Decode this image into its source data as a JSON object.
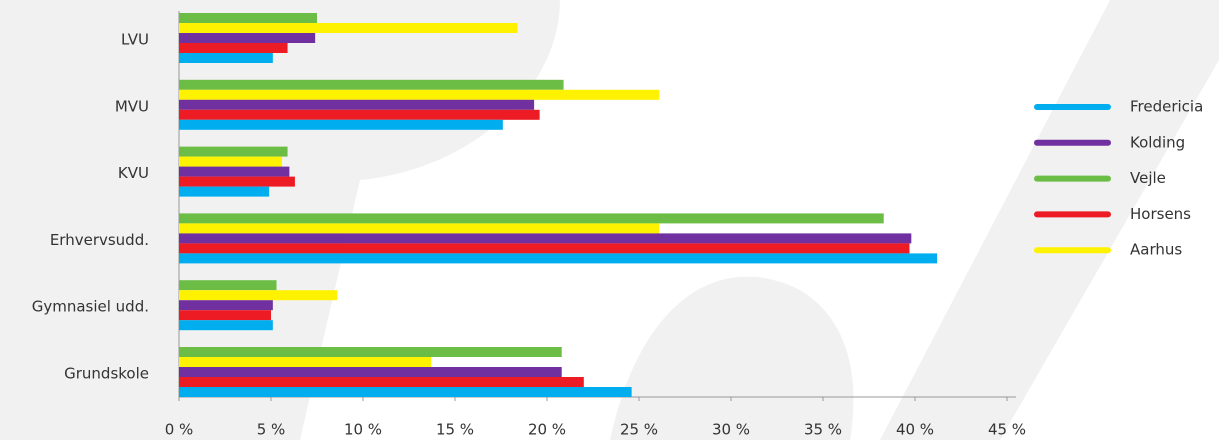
{
  "chart_data": {
    "type": "hbar",
    "categories": [
      "LVU",
      "MVU",
      "KVU",
      "Erhvervsudd.",
      "Gymnasiel udd.",
      "Grundskole"
    ],
    "series": [
      {
        "name": "Fredericia",
        "color": "#00aeef",
        "values": [
          5.1,
          17.6,
          4.9,
          41.2,
          5.1,
          24.6
        ]
      },
      {
        "name": "Kolding",
        "color": "#7030a0",
        "values": [
          7.4,
          19.3,
          6.0,
          39.8,
          5.1,
          20.8
        ]
      },
      {
        "name": "Vejle",
        "color": "#6cbd45",
        "values": [
          7.5,
          20.9,
          5.9,
          38.3,
          5.3,
          20.8
        ]
      },
      {
        "name": "Horsens",
        "color": "#ed1c24",
        "values": [
          5.9,
          19.6,
          6.3,
          39.7,
          5.0,
          22.0
        ]
      },
      {
        "name": "Aarhus",
        "color": "#fff200",
        "values": [
          18.4,
          26.1,
          5.6,
          26.1,
          8.6,
          13.7
        ]
      }
    ],
    "xlim": [
      0,
      45
    ],
    "xticks": [
      {
        "value": 0,
        "label": "0 %"
      },
      {
        "value": 5,
        "label": "5 %"
      },
      {
        "value": 10,
        "label": "10 %"
      },
      {
        "value": 15,
        "label": "15 %"
      },
      {
        "value": 20,
        "label": "20 %"
      },
      {
        "value": 25,
        "label": "25 %"
      },
      {
        "value": 30,
        "label": "30 %"
      },
      {
        "value": 35,
        "label": "35 %"
      },
      {
        "value": 40,
        "label": "40 %"
      },
      {
        "value": 45,
        "label": "45 %"
      }
    ],
    "legend": "right"
  }
}
